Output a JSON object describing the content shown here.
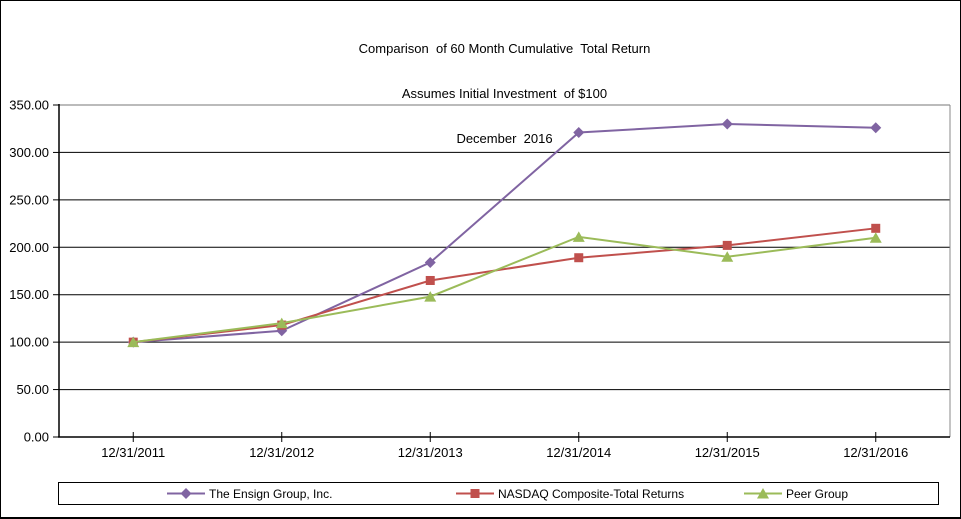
{
  "chart": {
    "title_lines": [
      "Comparison  of 60 Month Cumulative  Total Return",
      "Assumes Initial Investment  of $100",
      "December  2016"
    ]
  },
  "chart_data": {
    "type": "line",
    "title": "Comparison of 60 Month Cumulative Total Return",
    "subtitle": "Assumes Initial Investment of $100",
    "date_label": "December 2016",
    "categories": [
      "12/31/2011",
      "12/31/2012",
      "12/31/2013",
      "12/31/2014",
      "12/31/2015",
      "12/31/2016"
    ],
    "series": [
      {
        "name": "The Ensign Group, Inc.",
        "color": "#8064A2",
        "marker": "diamond",
        "values": [
          100.0,
          112.0,
          184.0,
          321.0,
          330.0,
          326.0
        ]
      },
      {
        "name": "NASDAQ Composite-Total Returns",
        "color": "#C0504D",
        "marker": "square",
        "values": [
          100.0,
          118.0,
          165.0,
          189.0,
          202.0,
          220.0
        ]
      },
      {
        "name": "Peer Group",
        "color": "#9BBB59",
        "marker": "triangle",
        "values": [
          100.0,
          120.0,
          148.0,
          211.0,
          190.0,
          210.0
        ]
      }
    ],
    "ylim": [
      0,
      350
    ],
    "y_tick_step": 50,
    "y_tick_labels": [
      "0.00",
      "50.00",
      "100.00",
      "150.00",
      "200.00",
      "250.00",
      "300.00",
      "350.00"
    ],
    "grid": true,
    "legend_position": "bottom",
    "axis_color": "#000000",
    "gridline_color": "#000000",
    "plot_border_color": "#888888"
  }
}
